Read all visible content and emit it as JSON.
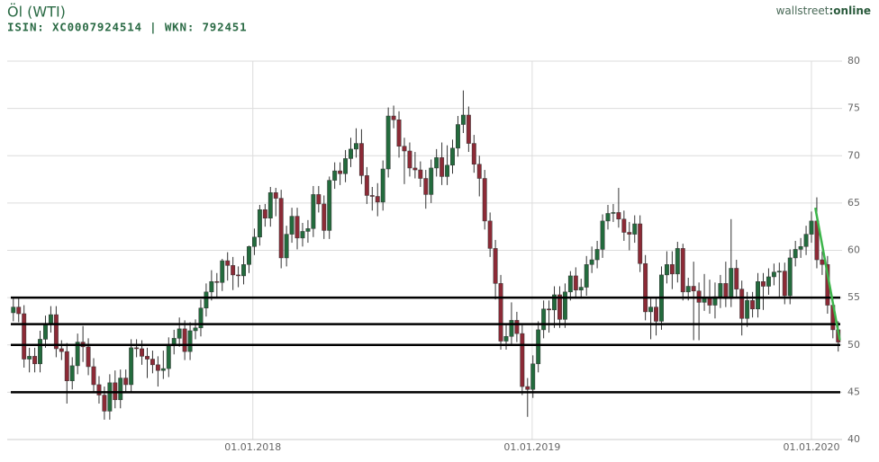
{
  "header": {
    "title": "Öl (WTI)",
    "subtitle": "ISIN: XC0007924514  | WKN: 792451",
    "brand": [
      "wallstreet",
      ":online"
    ]
  },
  "chart_data": {
    "type": "candlestick",
    "x": [
      "2017-02-20",
      "2017-02-27",
      "2017-03-06",
      "2017-03-13",
      "2017-03-20",
      "2017-03-27",
      "2017-04-03",
      "2017-04-10",
      "2017-04-17",
      "2017-04-24",
      "2017-05-01",
      "2017-05-08",
      "2017-05-15",
      "2017-05-22",
      "2017-05-29",
      "2017-06-05",
      "2017-06-12",
      "2017-06-19",
      "2017-06-26",
      "2017-07-03",
      "2017-07-10",
      "2017-07-17",
      "2017-07-24",
      "2017-07-31",
      "2017-08-07",
      "2017-08-14",
      "2017-08-21",
      "2017-08-28",
      "2017-09-04",
      "2017-09-11",
      "2017-09-18",
      "2017-09-25",
      "2017-10-02",
      "2017-10-09",
      "2017-10-16",
      "2017-10-23",
      "2017-10-30",
      "2017-11-06",
      "2017-11-13",
      "2017-11-20",
      "2017-11-27",
      "2017-12-04",
      "2017-12-11",
      "2017-12-18",
      "2017-12-25",
      "2018-01-01",
      "2018-01-08",
      "2018-01-15",
      "2018-01-22",
      "2018-01-29",
      "2018-02-05",
      "2018-02-12",
      "2018-02-19",
      "2018-02-26",
      "2018-03-05",
      "2018-03-12",
      "2018-03-19",
      "2018-03-26",
      "2018-04-02",
      "2018-04-09",
      "2018-04-16",
      "2018-04-23",
      "2018-04-30",
      "2018-05-07",
      "2018-05-14",
      "2018-05-21",
      "2018-05-28",
      "2018-06-04",
      "2018-06-11",
      "2018-06-18",
      "2018-06-25",
      "2018-07-02",
      "2018-07-09",
      "2018-07-16",
      "2018-07-23",
      "2018-07-30",
      "2018-08-06",
      "2018-08-13",
      "2018-08-20",
      "2018-08-27",
      "2018-09-03",
      "2018-09-10",
      "2018-09-17",
      "2018-09-24",
      "2018-10-01",
      "2018-10-08",
      "2018-10-15",
      "2018-10-22",
      "2018-10-29",
      "2018-11-05",
      "2018-11-12",
      "2018-11-19",
      "2018-11-26",
      "2018-12-03",
      "2018-12-10",
      "2018-12-17",
      "2018-12-24",
      "2018-12-31",
      "2019-01-07",
      "2019-01-14",
      "2019-01-21",
      "2019-01-28",
      "2019-02-04",
      "2019-02-11",
      "2019-02-18",
      "2019-02-25",
      "2019-03-04",
      "2019-03-11",
      "2019-03-18",
      "2019-03-25",
      "2019-04-01",
      "2019-04-08",
      "2019-04-15",
      "2019-04-22",
      "2019-04-29",
      "2019-05-06",
      "2019-05-13",
      "2019-05-20",
      "2019-05-27",
      "2019-06-03",
      "2019-06-10",
      "2019-06-17",
      "2019-06-24",
      "2019-07-01",
      "2019-07-08",
      "2019-07-15",
      "2019-07-22",
      "2019-07-29",
      "2019-08-05",
      "2019-08-12",
      "2019-08-19",
      "2019-08-26",
      "2019-09-02",
      "2019-09-09",
      "2019-09-16",
      "2019-09-23",
      "2019-09-30",
      "2019-10-07",
      "2019-10-14",
      "2019-10-21",
      "2019-10-28",
      "2019-11-04",
      "2019-11-11",
      "2019-11-18",
      "2019-11-25",
      "2019-12-02",
      "2019-12-09",
      "2019-12-16",
      "2019-12-23",
      "2019-12-30",
      "2020-01-06",
      "2020-01-13",
      "2020-01-20",
      "2020-01-27",
      "2020-02-03"
    ],
    "open": [
      53.4,
      54.0,
      53.3,
      48.5,
      48.8,
      48.0,
      50.6,
      52.2,
      53.2,
      49.6,
      49.3,
      46.2,
      47.8,
      50.3,
      49.8,
      47.7,
      45.8,
      44.7,
      43.0,
      46.0,
      44.2,
      46.5,
      45.8,
      49.7,
      49.6,
      48.8,
      48.5,
      47.9,
      47.3,
      47.5,
      49.9,
      50.7,
      51.7,
      49.3,
      51.5,
      51.8,
      53.9,
      55.6,
      56.7,
      56.6,
      58.9,
      58.4,
      57.4,
      57.3,
      58.5,
      60.4,
      61.4,
      64.3,
      63.4,
      66.1,
      65.5,
      59.2,
      61.7,
      63.6,
      61.3,
      62.0,
      62.3,
      65.9,
      64.9,
      62.1,
      67.4,
      68.4,
      68.1,
      69.7,
      70.7,
      71.3,
      67.9,
      65.8,
      65.7,
      65.1,
      68.6,
      74.2,
      73.8,
      71.0,
      70.5,
      68.7,
      68.5,
      67.6,
      65.9,
      68.7,
      69.8,
      67.8,
      69.0,
      70.8,
      73.3,
      74.3,
      71.3,
      69.1,
      67.6,
      63.1,
      60.2,
      56.5,
      50.4,
      50.9,
      52.6,
      51.2,
      45.6,
      45.3,
      48.0,
      51.6,
      53.8,
      53.7,
      55.3,
      52.7,
      55.6,
      57.3,
      55.8,
      56.1,
      58.5,
      59.0,
      60.1,
      63.1,
      63.9,
      64.0,
      63.3,
      61.9,
      61.7,
      62.8,
      58.6,
      53.5,
      54.0,
      52.5,
      57.4,
      58.5,
      57.5,
      60.2,
      55.6,
      56.2,
      55.7,
      54.5,
      54.9,
      54.2,
      55.1,
      56.5,
      54.9,
      58.1,
      55.9,
      52.8,
      54.7,
      53.8,
      56.7,
      56.2,
      57.2,
      57.7,
      57.8,
      55.2,
      59.2,
      60.1,
      60.4,
      61.7,
      63.1,
      59.0,
      58.5,
      54.2,
      51.6
    ],
    "high": [
      54.9,
      54.9,
      54.2,
      49.7,
      49.7,
      51.5,
      53.1,
      54.1,
      54.1,
      50.5,
      50.2,
      48.7,
      51.2,
      52.0,
      50.7,
      48.6,
      46.7,
      45.6,
      46.9,
      47.3,
      47.4,
      47.4,
      50.6,
      50.6,
      50.5,
      49.7,
      49.4,
      48.8,
      49.4,
      50.8,
      51.6,
      52.9,
      52.6,
      52.4,
      52.7,
      54.8,
      56.5,
      57.9,
      57.6,
      59.1,
      59.8,
      59.3,
      58.3,
      59.4,
      60.5,
      62.3,
      64.8,
      64.9,
      66.7,
      66.6,
      66.4,
      62.6,
      64.5,
      64.5,
      62.9,
      63.2,
      66.8,
      66.8,
      65.8,
      67.8,
      69.3,
      69.3,
      70.6,
      71.9,
      72.9,
      72.8,
      68.8,
      66.7,
      67.1,
      69.5,
      75.1,
      75.3,
      74.7,
      71.9,
      71.4,
      70.4,
      69.4,
      68.5,
      69.6,
      70.7,
      71.4,
      71.1,
      71.7,
      74.2,
      76.9,
      75.2,
      72.2,
      70.0,
      68.5,
      64.0,
      61.1,
      57.4,
      52.2,
      54.5,
      53.5,
      52.1,
      46.5,
      48.9,
      52.5,
      54.7,
      54.7,
      56.2,
      56.2,
      56.5,
      57.8,
      58.2,
      57.0,
      59.4,
      60.4,
      61.0,
      63.8,
      64.8,
      64.9,
      66.6,
      64.2,
      63.0,
      63.7,
      63.7,
      59.5,
      54.9,
      54.9,
      58.3,
      59.9,
      59.9,
      60.9,
      60.7,
      57.1,
      58.8,
      56.6,
      57.5,
      56.9,
      56.6,
      57.4,
      58.8,
      63.3,
      59.0,
      56.8,
      55.6,
      55.6,
      57.6,
      57.6,
      58.1,
      58.6,
      58.7,
      58.7,
      60.1,
      61.0,
      61.3,
      62.6,
      64.1,
      65.6,
      59.9,
      59.4,
      55.1,
      52.5
    ],
    "low": [
      52.5,
      52.4,
      47.6,
      47.1,
      47.1,
      47.1,
      49.7,
      51.3,
      48.7,
      48.4,
      43.8,
      45.3,
      46.9,
      48.2,
      46.8,
      44.9,
      43.8,
      42.1,
      42.1,
      43.3,
      43.3,
      44.9,
      44.9,
      48.7,
      47.9,
      46.5,
      47.0,
      45.6,
      46.4,
      46.6,
      49.0,
      49.8,
      48.4,
      48.4,
      50.6,
      50.9,
      53.0,
      54.7,
      54.9,
      55.7,
      56.8,
      55.8,
      56.1,
      56.4,
      57.6,
      59.5,
      60.5,
      62.5,
      62.5,
      63.6,
      58.1,
      58.3,
      60.8,
      60.1,
      60.4,
      60.8,
      61.4,
      64.0,
      61.2,
      61.2,
      66.5,
      66.9,
      67.2,
      68.8,
      69.8,
      67.0,
      64.9,
      64.2,
      63.6,
      64.2,
      67.7,
      72.9,
      69.8,
      67.0,
      67.8,
      67.6,
      66.7,
      64.4,
      65.0,
      67.8,
      66.9,
      66.9,
      68.1,
      69.9,
      72.4,
      70.4,
      68.2,
      65.7,
      62.2,
      59.3,
      54.8,
      49.5,
      49.5,
      50.0,
      50.3,
      44.7,
      42.4,
      44.4,
      47.1,
      50.7,
      51.3,
      51.8,
      51.8,
      51.8,
      54.7,
      54.9,
      54.9,
      55.2,
      57.6,
      58.1,
      59.2,
      62.2,
      63.0,
      62.4,
      61.0,
      60.0,
      60.8,
      57.7,
      52.6,
      50.6,
      51.0,
      51.6,
      56.5,
      55.9,
      56.6,
      54.7,
      54.7,
      50.5,
      50.5,
      53.6,
      53.3,
      52.8,
      53.9,
      54.0,
      54.0,
      55.0,
      51.0,
      51.9,
      52.9,
      52.9,
      53.7,
      55.3,
      56.3,
      55.0,
      54.3,
      54.3,
      58.3,
      59.2,
      59.5,
      60.8,
      58.1,
      57.4,
      53.3,
      50.7,
      49.3
    ],
    "close": [
      54.0,
      53.3,
      48.5,
      48.8,
      48.0,
      50.6,
      52.2,
      53.2,
      49.6,
      49.3,
      46.2,
      47.8,
      50.3,
      49.8,
      47.7,
      45.8,
      44.7,
      43.0,
      46.0,
      44.2,
      46.5,
      45.8,
      49.7,
      49.6,
      48.8,
      48.5,
      47.9,
      47.3,
      47.5,
      49.9,
      50.7,
      51.7,
      49.3,
      51.5,
      51.8,
      53.9,
      55.6,
      56.7,
      56.6,
      58.9,
      58.4,
      57.4,
      57.3,
      58.5,
      60.4,
      61.4,
      64.3,
      63.4,
      66.1,
      65.5,
      59.2,
      61.7,
      63.6,
      61.3,
      62.0,
      62.3,
      65.9,
      64.9,
      62.1,
      67.4,
      68.4,
      68.1,
      69.7,
      70.7,
      71.3,
      67.9,
      65.8,
      65.7,
      65.1,
      68.6,
      74.2,
      73.8,
      71.0,
      70.5,
      68.7,
      68.5,
      67.6,
      65.9,
      68.7,
      69.8,
      67.8,
      69.0,
      70.8,
      73.3,
      74.3,
      71.3,
      69.1,
      67.6,
      63.1,
      60.2,
      56.5,
      50.4,
      50.9,
      52.6,
      51.2,
      45.6,
      45.3,
      48.0,
      51.6,
      53.8,
      53.7,
      55.3,
      52.7,
      55.6,
      57.3,
      55.8,
      56.1,
      58.5,
      59.0,
      60.1,
      63.1,
      63.9,
      64.0,
      63.3,
      61.9,
      61.7,
      62.8,
      58.6,
      53.5,
      54.0,
      52.5,
      57.4,
      58.5,
      57.5,
      60.2,
      55.6,
      56.2,
      55.7,
      54.5,
      54.9,
      54.2,
      55.1,
      56.5,
      54.9,
      58.1,
      55.9,
      52.8,
      54.7,
      53.8,
      56.7,
      56.2,
      57.2,
      57.7,
      57.8,
      55.2,
      59.2,
      60.1,
      60.4,
      61.7,
      63.1,
      59.0,
      58.5,
      54.2,
      51.6,
      50.3
    ],
    "up_color": "#236b3d",
    "down_color": "#8c2a36",
    "wick_color": "#333333",
    "ylim": [
      40,
      80
    ],
    "yticks": [
      40,
      45,
      50,
      55,
      60,
      65,
      70,
      75,
      80
    ],
    "xlim": [
      "2017-02-14",
      "2020-02-10"
    ],
    "xticks": [
      {
        "value": "2018-01-01",
        "label": "01.01.2018"
      },
      {
        "value": "2019-01-01",
        "label": "01.01.2019"
      },
      {
        "value": "2020-01-01",
        "label": "01.01.2020"
      }
    ],
    "grid": true,
    "horizontal_lines": {
      "values": [
        55,
        52.2,
        50,
        45
      ],
      "color": "#000000"
    },
    "trend_line": {
      "x": [
        "2020-01-06",
        "2020-02-07"
      ],
      "y": [
        64.5,
        50.5
      ],
      "color": "#3cb54a"
    }
  }
}
